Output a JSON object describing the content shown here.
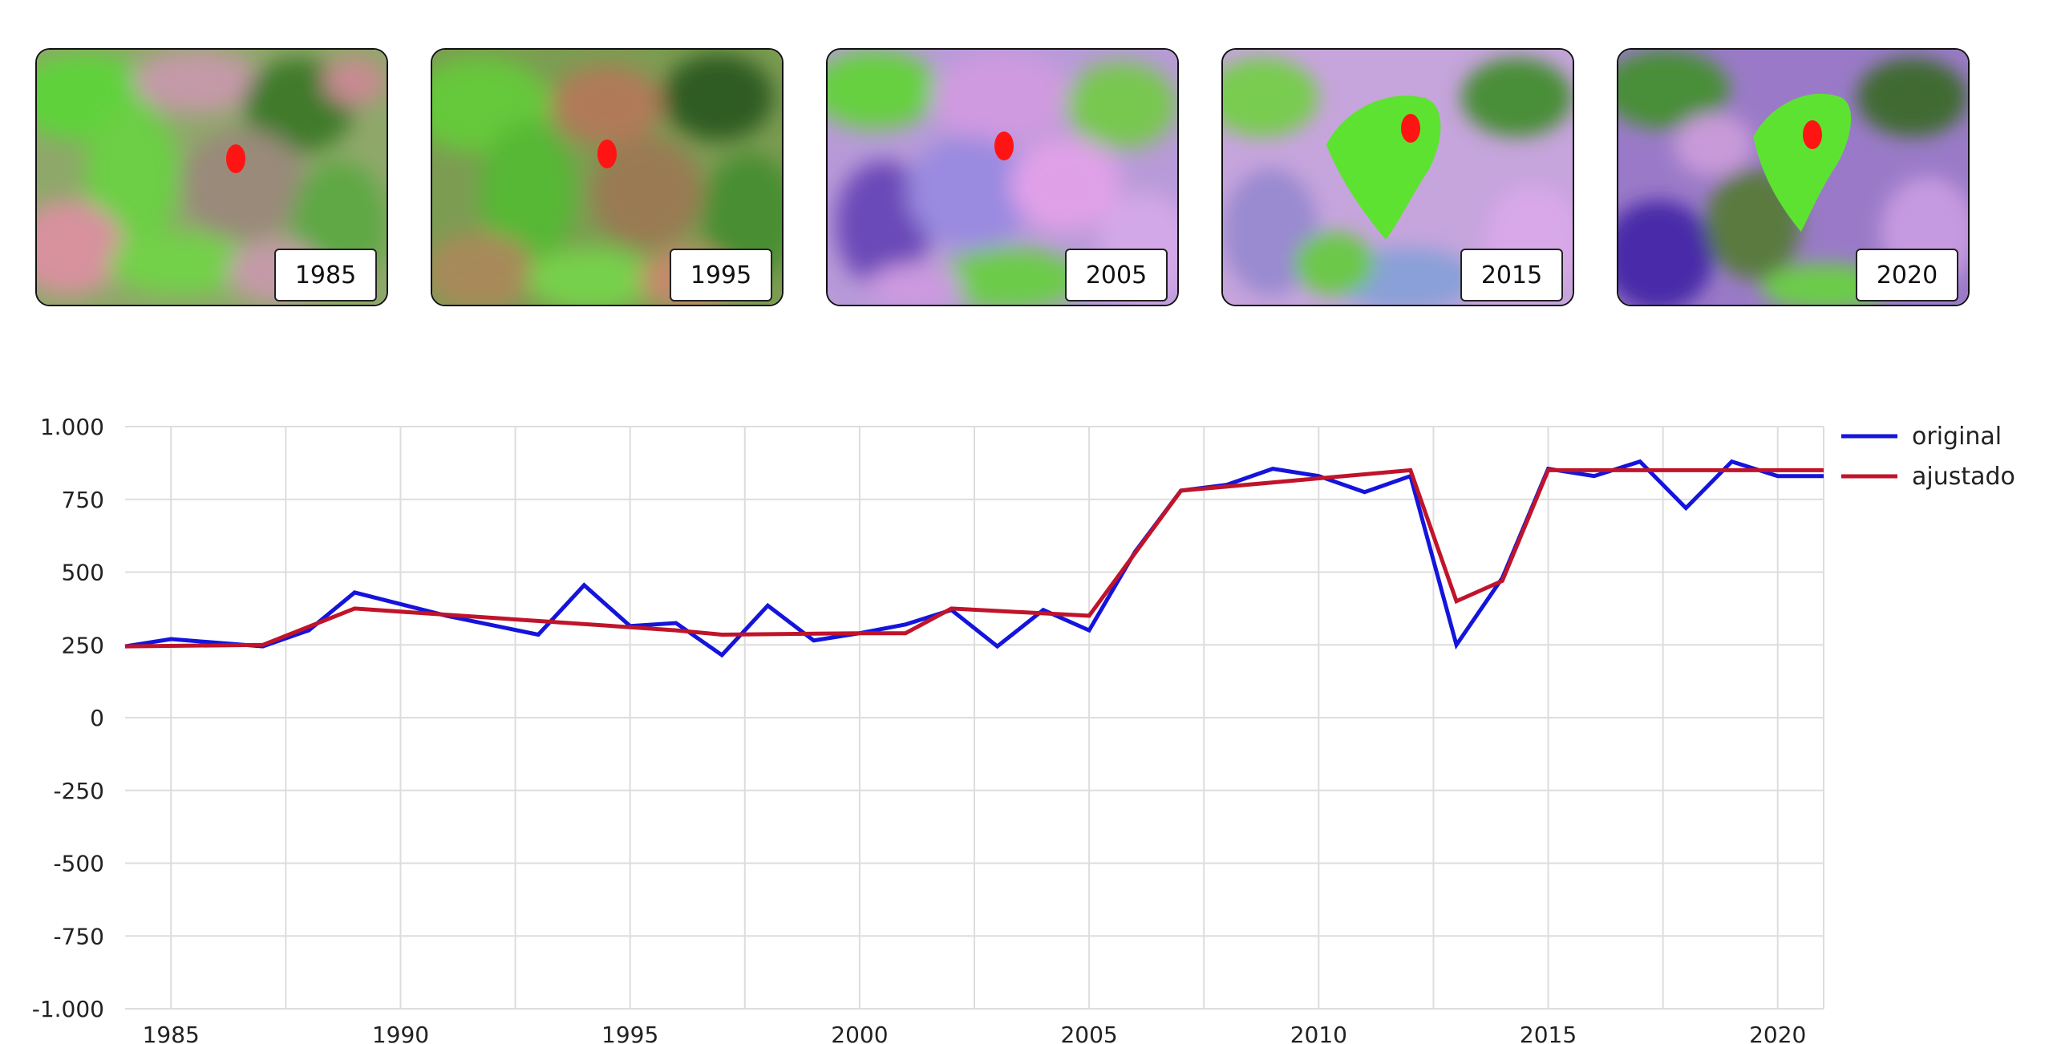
{
  "thumbnails": [
    {
      "year": "1985"
    },
    {
      "year": "1995"
    },
    {
      "year": "2005"
    },
    {
      "year": "2015"
    },
    {
      "year": "2020"
    }
  ],
  "colors": {
    "original": "#1414dc",
    "ajustado": "#c0142a",
    "marker": "#ff1414",
    "grid": "#dddddd"
  },
  "chart_data": {
    "type": "line",
    "title": "",
    "xlabel": "",
    "ylabel": "",
    "xlim": [
      1984,
      2021
    ],
    "ylim": [
      -1000,
      1000
    ],
    "x_ticks": [
      1985,
      1990,
      1995,
      2000,
      2005,
      2010,
      2015,
      2020
    ],
    "y_ticks": [
      1000,
      750,
      500,
      250,
      0,
      -250,
      -500,
      -750,
      -1000
    ],
    "y_tick_labels": [
      "1.000",
      "750",
      "500",
      "250",
      "0",
      "-250",
      "-500",
      "-750",
      "-1.000"
    ],
    "grid": true,
    "legend_position": "top-right",
    "series": [
      {
        "name": "original",
        "x": [
          1984,
          1985,
          1987,
          1988,
          1989,
          1991,
          1993,
          1994,
          1995,
          1996,
          1997,
          1998,
          1999,
          2000,
          2001,
          2002,
          2003,
          2004,
          2005,
          2006,
          2007,
          2008,
          2009,
          2010,
          2011,
          2012,
          2013,
          2014,
          2015,
          2016,
          2017,
          2018,
          2019,
          2020,
          2021
        ],
        "y": [
          245,
          270,
          245,
          300,
          430,
          350,
          285,
          455,
          315,
          325,
          215,
          385,
          265,
          290,
          320,
          370,
          245,
          370,
          300,
          570,
          780,
          800,
          855,
          830,
          775,
          830,
          250,
          480,
          855,
          830,
          880,
          720,
          880,
          830,
          830
        ]
      },
      {
        "name": "ajustado",
        "x": [
          1984,
          1987,
          1989,
          1996,
          1997,
          2000,
          2001,
          2002,
          2005,
          2007,
          2012,
          2013,
          2014,
          2015,
          2021
        ],
        "y": [
          245,
          250,
          375,
          300,
          285,
          290,
          290,
          375,
          350,
          780,
          850,
          400,
          470,
          850,
          850
        ]
      }
    ]
  }
}
